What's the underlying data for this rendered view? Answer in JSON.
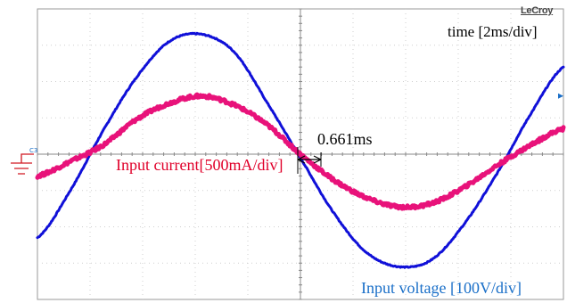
{
  "brand": "LeCroy",
  "chart_data": {
    "type": "line",
    "title": "",
    "timebase_label": "time [2ms/div]",
    "annotation": "0.661ms",
    "channel_marker": "C3",
    "xlim_ms": [
      0,
      16
    ],
    "ylim_div": [
      -4,
      4
    ],
    "grid": true,
    "series": [
      {
        "name": "Input voltage [100V/div]",
        "color": "#1010d8",
        "x": [
          0,
          1,
          2,
          3,
          4,
          5,
          6,
          7,
          8,
          9,
          10,
          11,
          12,
          13,
          14,
          15,
          16
        ],
        "y": [
          -2.3,
          -1.0,
          0.65,
          2.1,
          3.1,
          3.3,
          2.8,
          1.4,
          -0.1,
          -1.6,
          -2.7,
          -3.1,
          -2.9,
          -1.9,
          -0.5,
          1.1,
          2.4
        ]
      },
      {
        "name": "Input current[500mA/div]",
        "color": "#e8127a",
        "x": [
          0,
          1,
          2,
          3,
          4,
          5,
          6,
          7,
          8,
          9,
          10,
          11,
          12,
          13,
          14,
          15,
          16
        ],
        "y": [
          -0.6,
          -0.2,
          0.25,
          0.95,
          1.4,
          1.6,
          1.35,
          0.8,
          0.0,
          -0.7,
          -1.2,
          -1.45,
          -1.35,
          -0.9,
          -0.3,
          0.25,
          0.7
        ]
      }
    ]
  }
}
